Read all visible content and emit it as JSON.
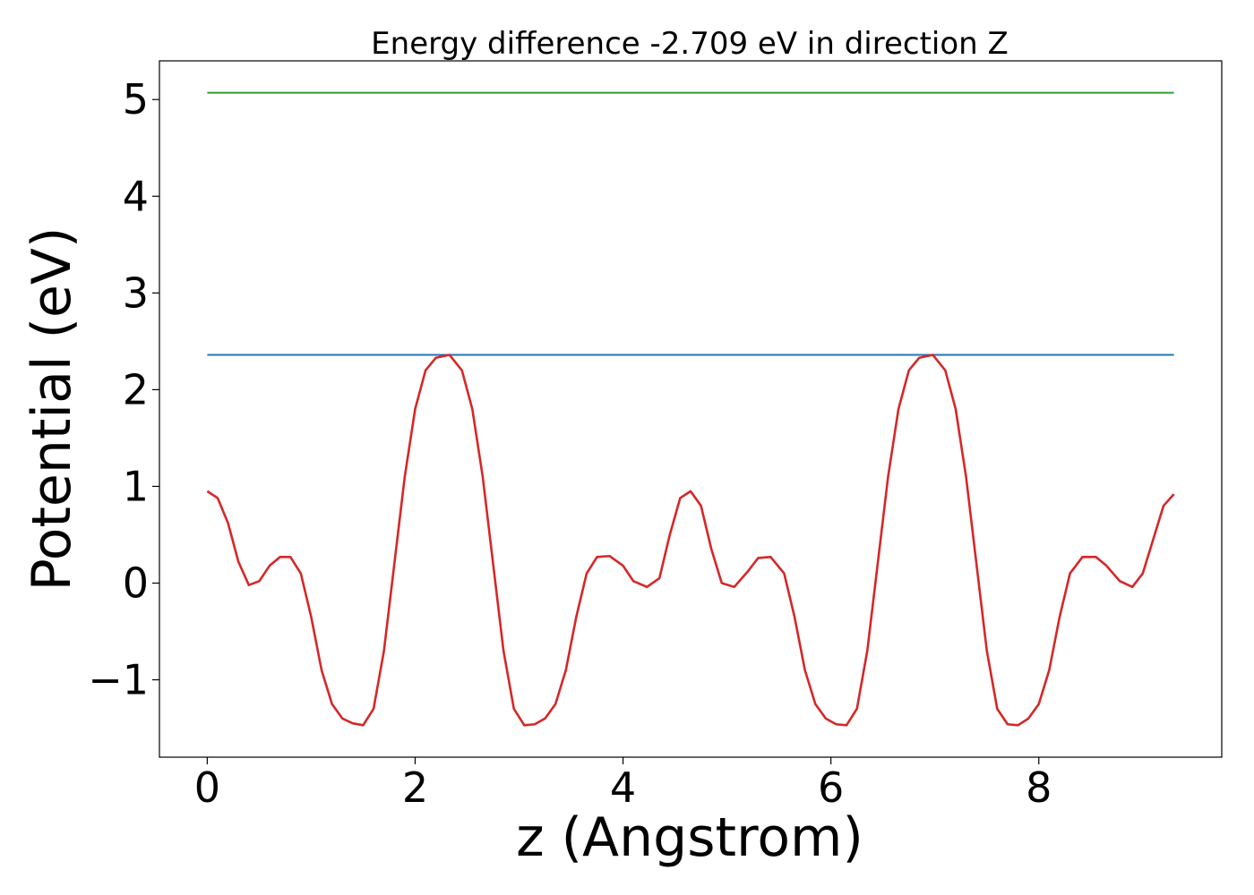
{
  "chart_data": {
    "type": "line",
    "title": "Energy difference -2.709 eV in direction Z",
    "xlabel": "z (Angstrom)",
    "ylabel": "Potential (eV)",
    "xlim": [
      -0.46,
      9.76
    ],
    "ylim": [
      -1.8,
      5.4
    ],
    "x_ticks": [
      {
        "value": 0,
        "label": "0"
      },
      {
        "value": 2,
        "label": "2"
      },
      {
        "value": 4,
        "label": "4"
      },
      {
        "value": 6,
        "label": "6"
      },
      {
        "value": 8,
        "label": "8"
      }
    ],
    "y_ticks": [
      {
        "value": -1,
        "label": "−1"
      },
      {
        "value": 0,
        "label": "0"
      },
      {
        "value": 1,
        "label": "1"
      },
      {
        "value": 2,
        "label": "2"
      },
      {
        "value": 3,
        "label": "3"
      },
      {
        "value": 4,
        "label": "4"
      },
      {
        "value": 5,
        "label": "5"
      }
    ],
    "grid": false,
    "series": [
      {
        "color": "#2ca02c",
        "x": [
          0.0,
          9.3
        ],
        "y": [
          5.07,
          5.07
        ]
      },
      {
        "color": "#1f77b4",
        "x": [
          0.0,
          9.3
        ],
        "y": [
          2.36,
          2.36
        ]
      },
      {
        "color": "#d62728",
        "x": [
          0.0,
          0.1,
          0.2,
          0.3,
          0.4,
          0.5,
          0.6,
          0.7,
          0.8,
          0.9,
          1.0,
          1.1,
          1.2,
          1.3,
          1.4,
          1.5,
          1.6,
          1.7,
          1.8,
          1.9,
          2.0,
          2.1,
          2.2,
          2.33,
          2.45,
          2.55,
          2.65,
          2.75,
          2.85,
          2.95,
          3.05,
          3.15,
          3.25,
          3.35,
          3.45,
          3.55,
          3.65,
          3.75,
          3.87,
          4.0,
          4.1,
          4.23,
          4.35,
          4.45,
          4.55,
          4.65,
          4.75,
          4.85,
          4.95,
          5.07,
          5.2,
          5.3,
          5.42,
          5.55,
          5.65,
          5.75,
          5.85,
          5.95,
          6.05,
          6.15,
          6.25,
          6.35,
          6.45,
          6.55,
          6.65,
          6.75,
          6.85,
          6.98,
          7.1,
          7.2,
          7.3,
          7.4,
          7.5,
          7.6,
          7.7,
          7.8,
          7.9,
          8.0,
          8.1,
          8.2,
          8.3,
          8.42,
          8.55,
          8.65,
          8.78,
          8.9,
          9.0,
          9.1,
          9.2,
          9.3
        ],
        "y": [
          0.95,
          0.88,
          0.62,
          0.22,
          -0.02,
          0.02,
          0.18,
          0.27,
          0.27,
          0.1,
          -0.35,
          -0.9,
          -1.25,
          -1.4,
          -1.45,
          -1.47,
          -1.3,
          -0.7,
          0.2,
          1.1,
          1.8,
          2.2,
          2.33,
          2.36,
          2.2,
          1.8,
          1.1,
          0.2,
          -0.7,
          -1.3,
          -1.47,
          -1.46,
          -1.4,
          -1.25,
          -0.9,
          -0.35,
          0.1,
          0.27,
          0.28,
          0.18,
          0.02,
          -0.04,
          0.05,
          0.5,
          0.88,
          0.95,
          0.8,
          0.35,
          0.0,
          -0.04,
          0.12,
          0.26,
          0.27,
          0.1,
          -0.35,
          -0.9,
          -1.25,
          -1.4,
          -1.46,
          -1.47,
          -1.3,
          -0.7,
          0.2,
          1.1,
          1.8,
          2.2,
          2.33,
          2.36,
          2.2,
          1.8,
          1.1,
          0.2,
          -0.7,
          -1.3,
          -1.46,
          -1.47,
          -1.4,
          -1.25,
          -0.9,
          -0.35,
          0.1,
          0.27,
          0.27,
          0.18,
          0.02,
          -0.04,
          0.1,
          0.45,
          0.8,
          0.92
        ]
      }
    ]
  }
}
